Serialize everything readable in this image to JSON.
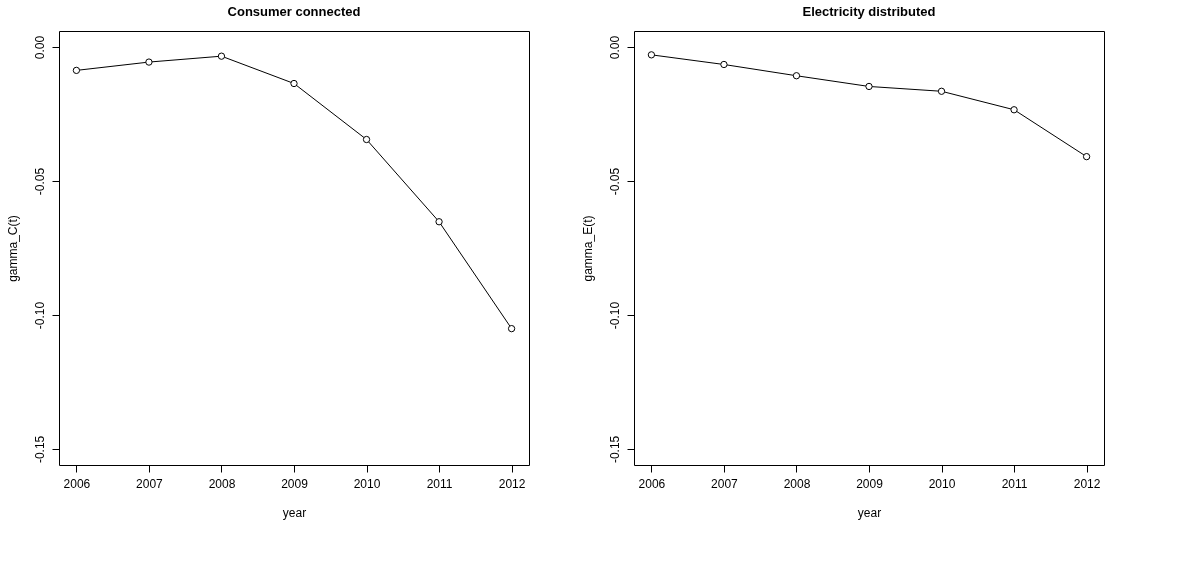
{
  "chart_data": [
    {
      "type": "line",
      "title": "Consumer connected",
      "xlabel": "year",
      "ylabel": "gamma_C(t)",
      "x": [
        2006,
        2007,
        2008,
        2009,
        2010,
        2011,
        2012
      ],
      "series": [
        {
          "color": "#000000",
          "values": [
            -0.0087,
            -0.0056,
            -0.0034,
            -0.0136,
            -0.0345,
            -0.0652,
            -0.1051
          ]
        }
      ],
      "xlim": [
        2005.76,
        2012.24
      ],
      "xticks": [
        2006,
        2007,
        2008,
        2009,
        2010,
        2011,
        2012
      ],
      "ylim": [
        -0.156,
        0.006
      ],
      "yticks": [
        {
          "value": -0.15,
          "label": "-0.15"
        },
        {
          "value": -0.1,
          "label": "-0.10"
        },
        {
          "value": -0.05,
          "label": "-0.05"
        },
        {
          "value": 0,
          "label": "0.00"
        }
      ],
      "grid": false,
      "marker": "circle",
      "line_style": "solid"
    },
    {
      "type": "line",
      "title": "Electricity distributed",
      "xlabel": "year",
      "ylabel": "gamma_E(t)",
      "x": [
        2006,
        2007,
        2008,
        2009,
        2010,
        2011,
        2012
      ],
      "series": [
        {
          "color": "#000000",
          "values": [
            -0.0029,
            -0.0065,
            -0.0107,
            -0.0147,
            -0.0165,
            -0.0234,
            -0.0409
          ]
        }
      ],
      "xlim": [
        2005.76,
        2012.24
      ],
      "xticks": [
        2006,
        2007,
        2008,
        2009,
        2010,
        2011,
        2012
      ],
      "ylim": [
        -0.156,
        0.006
      ],
      "yticks": [
        {
          "value": -0.15,
          "label": "-0.15"
        },
        {
          "value": -0.1,
          "label": "-0.10"
        },
        {
          "value": -0.05,
          "label": "-0.05"
        },
        {
          "value": 0,
          "label": "0.00"
        }
      ],
      "grid": false,
      "marker": "circle",
      "line_style": "solid"
    }
  ]
}
